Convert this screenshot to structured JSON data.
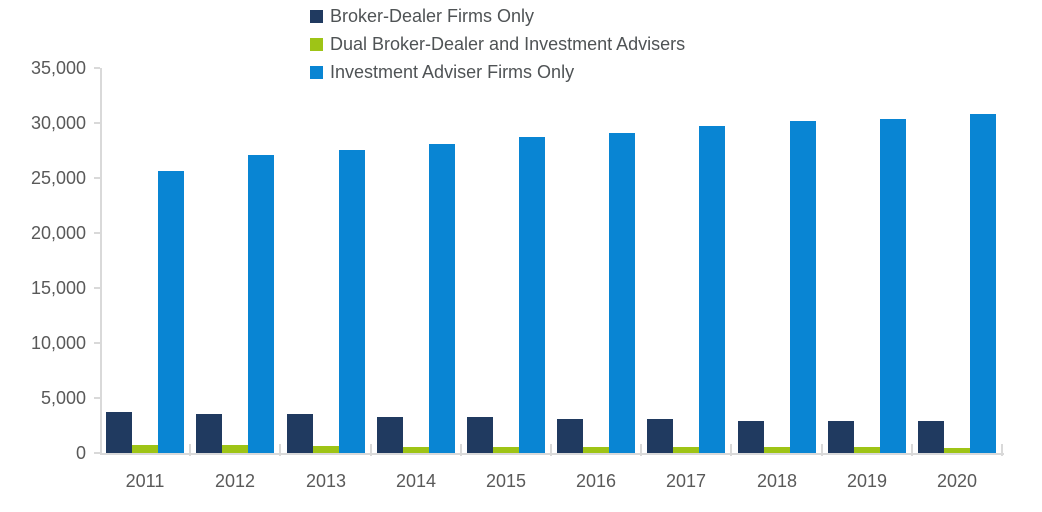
{
  "chart_data": {
    "type": "bar",
    "title": "",
    "categories": [
      "2011",
      "2012",
      "2013",
      "2014",
      "2015",
      "2016",
      "2017",
      "2018",
      "2019",
      "2020"
    ],
    "series": [
      {
        "name": "Broker-Dealer Firms Only",
        "color": "#203A60",
        "values": [
          3700,
          3550,
          3500,
          3300,
          3250,
          3100,
          3050,
          2950,
          2950,
          2900
        ]
      },
      {
        "name": "Dual Broker-Dealer and Investment Advisers",
        "color": "#9EC416",
        "values": [
          770,
          750,
          600,
          570,
          570,
          560,
          560,
          540,
          540,
          420
        ]
      },
      {
        "name": "Investment Adviser Firms Only",
        "color": "#0985D3",
        "values": [
          25600,
          27100,
          27500,
          28100,
          28700,
          29100,
          29700,
          30200,
          30400,
          30800
        ]
      }
    ],
    "xlabel": "",
    "ylabel": "",
    "ylim": [
      0,
      35000
    ],
    "y_ticks": [
      0,
      5000,
      10000,
      15000,
      20000,
      25000,
      30000,
      35000
    ],
    "y_tick_labels": [
      "0",
      "5,000",
      "10,000",
      "15,000",
      "20,000",
      "25,000",
      "30,000",
      "35,000"
    ],
    "grid": false,
    "legend_position": "top-center",
    "axis_color": "#D9D9D9",
    "label_color": "#595959"
  }
}
